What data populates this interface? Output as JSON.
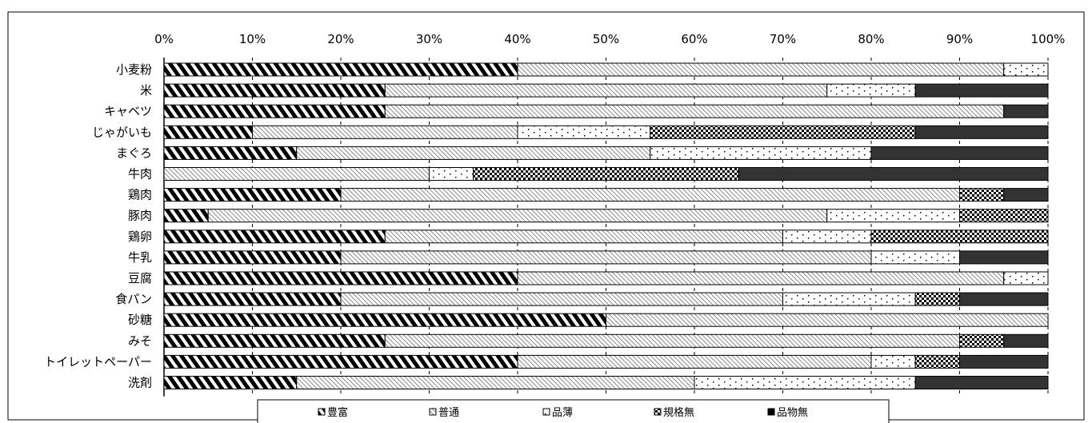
{
  "chart_data": {
    "type": "bar",
    "orientation": "horizontal",
    "stacked": true,
    "xlim": [
      0,
      100
    ],
    "x_ticks": [
      "0%",
      "10%",
      "20%",
      "30%",
      "40%",
      "50%",
      "60%",
      "70%",
      "80%",
      "90%",
      "100%"
    ],
    "x_tick_position": "top",
    "grid": "vertical-dashed",
    "legend_position": "bottom",
    "categories": [
      "小麦粉",
      "米",
      "キャベツ",
      "じゃがいも",
      "まぐろ",
      "牛肉",
      "鶏肉",
      "豚肉",
      "鶏卵",
      "牛乳",
      "豆腐",
      "食パン",
      "砂糖",
      "みそ",
      "トイレットペーパー",
      "洗剤"
    ],
    "series": [
      {
        "name": "豊富",
        "pattern": "bold-diagonal",
        "values": [
          40,
          25,
          25,
          10,
          15,
          0,
          20,
          5,
          25,
          20,
          40,
          20,
          50,
          25,
          40,
          15
        ]
      },
      {
        "name": "普通",
        "pattern": "fine-diagonal",
        "values": [
          55,
          50,
          70,
          30,
          40,
          30,
          70,
          70,
          45,
          60,
          55,
          50,
          50,
          65,
          40,
          45
        ]
      },
      {
        "name": "品薄",
        "pattern": "sparse-dots",
        "values": [
          5,
          10,
          0,
          15,
          25,
          5,
          0,
          15,
          10,
          10,
          5,
          15,
          0,
          0,
          5,
          25
        ]
      },
      {
        "name": "規格無",
        "pattern": "dense-dots",
        "values": [
          0,
          0,
          0,
          30,
          0,
          30,
          5,
          10,
          20,
          0,
          0,
          5,
          0,
          5,
          5,
          0
        ]
      },
      {
        "name": "品物無",
        "pattern": "solid",
        "values": [
          0,
          15,
          5,
          15,
          20,
          35,
          5,
          0,
          0,
          10,
          0,
          10,
          0,
          5,
          10,
          15
        ]
      }
    ],
    "colors": {
      "bar_fill": "#ffffff",
      "solid": "#333333",
      "pattern_ink": "#000000",
      "grid": "#000000",
      "frame": "#000000"
    }
  }
}
